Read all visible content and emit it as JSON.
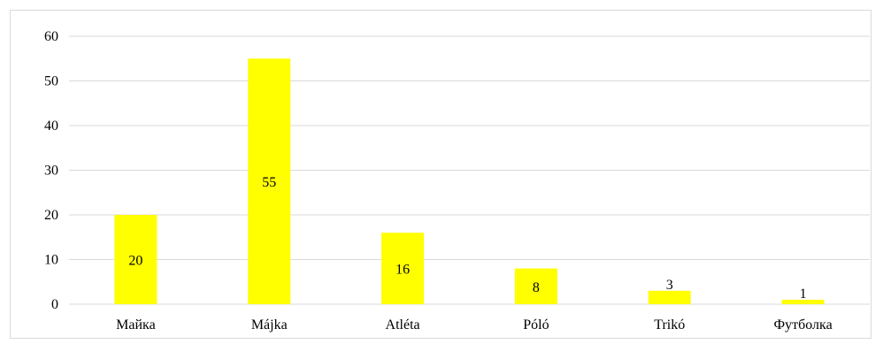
{
  "chart_data": {
    "type": "bar",
    "categories": [
      "Майка",
      "Májka",
      "Atléta",
      "Póló",
      "Trikó",
      "Футболка"
    ],
    "values": [
      20,
      55,
      16,
      8,
      3,
      1
    ],
    "title": "",
    "xlabel": "",
    "ylabel": "",
    "ylim": [
      0,
      60
    ],
    "yticks": [
      0,
      10,
      20,
      30,
      40,
      50,
      60
    ],
    "grid": true,
    "legend": "none",
    "bar_color": "#ffff00",
    "gridline_color": "#d9d9d9",
    "axis_color": "#d9d9d9"
  }
}
